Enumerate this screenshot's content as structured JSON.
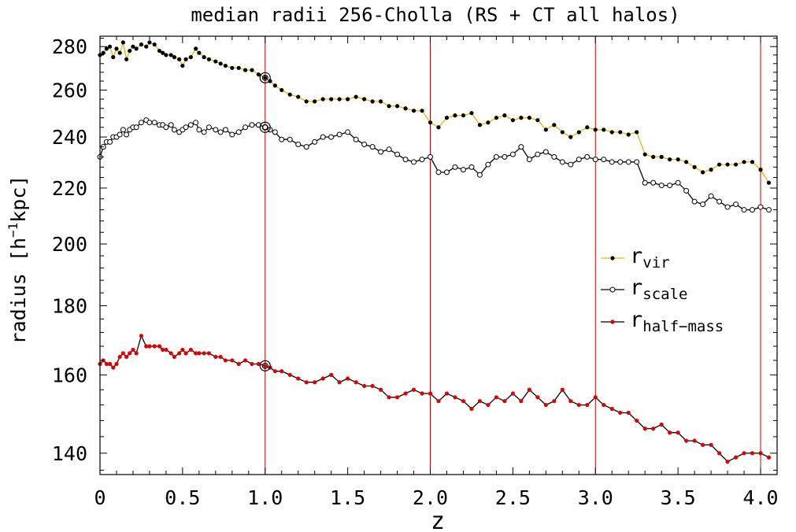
{
  "chart_data": {
    "type": "line",
    "title": "median radii 256-Cholla (RS + CT all halos)",
    "xlabel": "z",
    "ylabel_main": "radius [h",
    "ylabel_sup": "−1",
    "ylabel_end": "kpc]",
    "xlim": [
      0,
      4.1
    ],
    "ylim": [
      135,
      285
    ],
    "y_scale": "log",
    "x_ticks": [
      {
        "v": 0,
        "label": "0"
      },
      {
        "v": 0.5,
        "label": "0.5"
      },
      {
        "v": 1.0,
        "label": "1.0"
      },
      {
        "v": 1.5,
        "label": "1.5"
      },
      {
        "v": 2.0,
        "label": "2.0"
      },
      {
        "v": 2.5,
        "label": "2.5"
      },
      {
        "v": 3.0,
        "label": "3.0"
      },
      {
        "v": 3.5,
        "label": "3.5"
      },
      {
        "v": 4.0,
        "label": "4.0"
      }
    ],
    "y_ticks": [
      {
        "v": 140,
        "label": "140"
      },
      {
        "v": 160,
        "label": "160"
      },
      {
        "v": 180,
        "label": "180"
      },
      {
        "v": 200,
        "label": "200"
      },
      {
        "v": 220,
        "label": "220"
      },
      {
        "v": 240,
        "label": "240"
      },
      {
        "v": 260,
        "label": "260"
      },
      {
        "v": 280,
        "label": "280"
      }
    ],
    "vlines": [
      1.0,
      2.0,
      3.0,
      4.0
    ],
    "vline_color": "#cc0000",
    "grid": false,
    "legend_placement": "center-right",
    "highlight_x": 1.0,
    "series": [
      {
        "name": "r",
        "sub": "vir",
        "line_color": "#e8b400",
        "marker_color": "#000000",
        "marker": "filled",
        "x": [
          0,
          0.02,
          0.04,
          0.06,
          0.08,
          0.1,
          0.12,
          0.14,
          0.16,
          0.18,
          0.2,
          0.22,
          0.25,
          0.28,
          0.3,
          0.33,
          0.36,
          0.38,
          0.4,
          0.43,
          0.45,
          0.48,
          0.5,
          0.52,
          0.55,
          0.58,
          0.6,
          0.63,
          0.66,
          0.7,
          0.73,
          0.76,
          0.8,
          0.84,
          0.88,
          0.92,
          0.96,
          1.0,
          1.03,
          1.06,
          1.1,
          1.15,
          1.2,
          1.25,
          1.3,
          1.35,
          1.4,
          1.45,
          1.5,
          1.55,
          1.6,
          1.65,
          1.7,
          1.75,
          1.8,
          1.85,
          1.9,
          1.95,
          2.0,
          2.05,
          2.1,
          2.15,
          2.2,
          2.25,
          2.3,
          2.35,
          2.4,
          2.45,
          2.5,
          2.55,
          2.6,
          2.65,
          2.7,
          2.75,
          2.8,
          2.85,
          2.9,
          2.95,
          3.0,
          3.05,
          3.1,
          3.15,
          3.2,
          3.25,
          3.3,
          3.35,
          3.4,
          3.45,
          3.5,
          3.55,
          3.6,
          3.65,
          3.7,
          3.75,
          3.8,
          3.85,
          3.9,
          3.95,
          4.0,
          4.05
        ],
        "values": [
          276,
          277,
          279,
          280,
          275,
          279,
          277,
          282,
          274,
          278,
          280,
          279,
          281,
          280,
          282,
          281,
          278,
          277,
          276,
          276,
          275,
          274,
          271,
          274,
          275,
          279,
          277,
          275,
          274,
          273,
          272,
          271,
          270,
          270,
          269,
          269,
          267,
          265.5,
          264,
          262,
          260,
          258,
          257,
          255,
          255,
          256,
          256,
          256,
          256,
          257,
          256,
          255,
          255,
          253,
          253,
          252,
          251,
          251,
          246,
          244,
          248,
          249,
          249,
          250,
          245,
          246,
          248,
          249,
          247,
          248,
          248,
          247,
          243,
          245,
          242,
          240,
          242,
          244,
          243,
          243,
          242,
          242,
          241,
          242,
          233,
          232,
          232,
          231,
          231,
          230,
          228,
          226,
          227,
          229,
          229,
          229,
          230,
          230,
          227,
          222
        ]
      },
      {
        "name": "r",
        "sub": "scale",
        "line_color": "#000000",
        "marker_color": "#000000",
        "marker": "open",
        "x": [
          0,
          0.02,
          0.04,
          0.06,
          0.08,
          0.1,
          0.12,
          0.14,
          0.16,
          0.18,
          0.2,
          0.22,
          0.25,
          0.28,
          0.3,
          0.33,
          0.36,
          0.38,
          0.4,
          0.43,
          0.45,
          0.48,
          0.5,
          0.52,
          0.55,
          0.58,
          0.6,
          0.63,
          0.66,
          0.7,
          0.73,
          0.76,
          0.8,
          0.84,
          0.88,
          0.92,
          0.96,
          1.0,
          1.03,
          1.06,
          1.1,
          1.15,
          1.2,
          1.25,
          1.3,
          1.35,
          1.4,
          1.45,
          1.5,
          1.55,
          1.6,
          1.65,
          1.7,
          1.75,
          1.8,
          1.85,
          1.9,
          1.95,
          2.0,
          2.05,
          2.1,
          2.15,
          2.2,
          2.25,
          2.3,
          2.35,
          2.4,
          2.45,
          2.5,
          2.55,
          2.6,
          2.65,
          2.7,
          2.75,
          2.8,
          2.85,
          2.9,
          2.95,
          3.0,
          3.05,
          3.1,
          3.15,
          3.2,
          3.25,
          3.3,
          3.35,
          3.4,
          3.45,
          3.5,
          3.55,
          3.6,
          3.65,
          3.7,
          3.75,
          3.8,
          3.85,
          3.9,
          3.95,
          4.0,
          4.05
        ],
        "values": [
          232,
          236,
          238,
          238,
          240,
          240,
          241,
          243,
          241,
          243,
          244,
          244,
          246,
          247,
          246,
          246,
          245,
          245,
          244,
          245,
          243,
          242,
          243,
          244,
          245,
          246,
          243,
          242,
          244,
          243,
          242,
          243,
          241,
          242,
          244,
          245,
          245,
          244,
          243,
          242,
          239,
          239,
          237,
          236,
          238,
          240,
          240,
          241,
          242,
          239,
          237,
          236,
          234,
          235,
          233,
          231,
          230,
          231,
          232,
          226,
          226,
          228,
          227,
          228,
          225,
          229,
          232,
          232,
          233,
          236,
          231,
          233,
          234,
          232,
          230,
          229,
          231,
          232,
          231,
          231,
          230,
          230,
          230,
          230,
          222,
          222,
          221,
          221,
          222,
          219,
          215,
          214,
          217,
          215,
          213,
          214,
          212,
          212,
          213,
          212
        ]
      },
      {
        "name": "r",
        "sub": "half−mass",
        "line_color": "#000000",
        "marker_color": "#dd0000",
        "marker": "filled",
        "x": [
          0,
          0.02,
          0.04,
          0.06,
          0.08,
          0.1,
          0.12,
          0.14,
          0.16,
          0.18,
          0.2,
          0.22,
          0.25,
          0.28,
          0.3,
          0.33,
          0.36,
          0.38,
          0.4,
          0.43,
          0.45,
          0.48,
          0.5,
          0.52,
          0.55,
          0.58,
          0.6,
          0.63,
          0.66,
          0.7,
          0.73,
          0.76,
          0.8,
          0.84,
          0.88,
          0.92,
          0.96,
          1.0,
          1.03,
          1.06,
          1.1,
          1.15,
          1.2,
          1.25,
          1.3,
          1.35,
          1.4,
          1.45,
          1.5,
          1.55,
          1.6,
          1.65,
          1.7,
          1.75,
          1.8,
          1.85,
          1.9,
          1.95,
          2.0,
          2.05,
          2.1,
          2.15,
          2.2,
          2.25,
          2.3,
          2.35,
          2.4,
          2.45,
          2.5,
          2.55,
          2.6,
          2.65,
          2.7,
          2.75,
          2.8,
          2.85,
          2.9,
          2.95,
          3.0,
          3.05,
          3.1,
          3.15,
          3.2,
          3.25,
          3.3,
          3.35,
          3.4,
          3.45,
          3.5,
          3.55,
          3.6,
          3.65,
          3.7,
          3.75,
          3.8,
          3.85,
          3.9,
          3.95,
          4.0,
          4.05
        ],
        "values": [
          163,
          164,
          163,
          163,
          162,
          163,
          165,
          166,
          165,
          166,
          167,
          166,
          171,
          168,
          168,
          168,
          168,
          167,
          167,
          166,
          165,
          166,
          167,
          166,
          167,
          166,
          166,
          166,
          166,
          165,
          165,
          164,
          164,
          163,
          164,
          163,
          163,
          162.5,
          162,
          161,
          161,
          160,
          159,
          158,
          158,
          159,
          160,
          158,
          159,
          158,
          157,
          157,
          156,
          154,
          154,
          155,
          156,
          155,
          155,
          153,
          155,
          154,
          153,
          151,
          153,
          152,
          154,
          153,
          155,
          153,
          156,
          154,
          152,
          153,
          156,
          153,
          152,
          152,
          154,
          152,
          151,
          150,
          150,
          148,
          146,
          146,
          147,
          145,
          145,
          143,
          143,
          142,
          142,
          140,
          138,
          139,
          140,
          140,
          140,
          139
        ]
      }
    ]
  }
}
